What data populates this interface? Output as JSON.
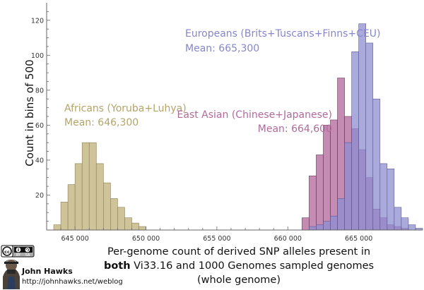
{
  "chart_data": {
    "type": "bar",
    "subtype": "overlapping-histogram",
    "xlabel_lines": [
      {
        "bold": "",
        "text": "Per-genome count of derived SNP alleles present in"
      },
      {
        "bold": "both",
        "text": " Vi33.16 and 1000 Genomes sampled genomes"
      },
      {
        "bold": "",
        "text": "(whole genome)"
      }
    ],
    "ylabel": "Count in bins of 500",
    "bin_width": 500,
    "xlim": [
      643000,
      669500
    ],
    "ylim": [
      0,
      130
    ],
    "x_ticks": [
      645000,
      650000,
      655000,
      660000,
      665000
    ],
    "x_tick_labels": [
      "645 000",
      "650 000",
      "655 000",
      "660 000",
      "665 000"
    ],
    "y_ticks": [
      20,
      40,
      60,
      80,
      100,
      120
    ],
    "y_tick_labels": [
      "20",
      "40",
      "60",
      "80",
      "100",
      "120"
    ],
    "grid": false,
    "series": [
      {
        "name": "Africans (Yoruba+Luhya)",
        "mean_label": "Mean: 646,300",
        "color": "#c9bd8e",
        "stroke": "#8a7f55",
        "opacity": 0.9,
        "bin_starts": [
          643500,
          644000,
          644500,
          645000,
          645500,
          646000,
          646500,
          647000,
          647500,
          648000,
          648500,
          649000,
          649500
        ],
        "values": [
          3,
          16,
          26,
          38,
          50,
          50,
          38,
          27,
          18,
          13,
          7,
          4,
          2
        ]
      },
      {
        "name": "Europeans (Brits+Tuscans+Finns+CEU)",
        "mean_label": "Mean: 665,300",
        "color": "#8e8ed2",
        "stroke": "#5a5a9a",
        "opacity": 0.75,
        "bin_starts": [
          661500,
          662000,
          662500,
          663000,
          663500,
          664000,
          664500,
          665000,
          665500,
          666000,
          666500,
          667000,
          667500,
          668000,
          668500,
          669000
        ],
        "values": [
          2,
          3,
          5,
          8,
          18,
          50,
          102,
          118,
          107,
          75,
          38,
          35,
          13,
          7,
          3,
          1
        ]
      },
      {
        "name": "East Asian (Chinese+Japanese)",
        "mean_label": "Mean: 664,600",
        "color": "#b0659a",
        "stroke": "#6a3a5c",
        "opacity": 0.75,
        "bin_starts": [
          661000,
          661500,
          662000,
          662500,
          663000,
          663500,
          664000,
          664500,
          665000,
          665500,
          666000,
          666500,
          667000,
          667500,
          668000
        ],
        "values": [
          7,
          31,
          43,
          60,
          63,
          87,
          65,
          58,
          46,
          30,
          12,
          7,
          3,
          2,
          1
        ]
      }
    ],
    "annotations": [
      {
        "series_index": 0,
        "name_color": "#b3a46a",
        "anchor": "start"
      },
      {
        "series_index": 1,
        "name_color": "#8686cc",
        "anchor": "start"
      },
      {
        "series_index": 2,
        "name_color": "#b06a9c",
        "anchor": "end"
      }
    ]
  },
  "credit": {
    "name": "John Hawks",
    "url": "http://johnhawks.net/weblog",
    "license_badge": "cc-by-sa-badge",
    "license_text": [
      "BY",
      "SA"
    ],
    "avatar": "author-portrait"
  }
}
